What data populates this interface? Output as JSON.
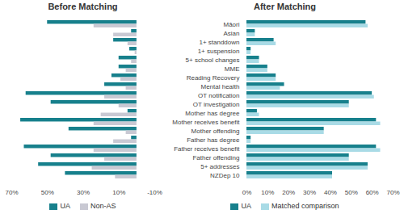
{
  "chart_data": [
    {
      "type": "bar",
      "title": "Before Matching",
      "orientation": "horizontal",
      "legend": "bottom",
      "tick_labels": "x",
      "categories": [
        "Māori",
        "Asian",
        "1+ standdown",
        "1+ suspension",
        "5+ school changes",
        "MME",
        "Reading Recovery",
        "Mental health",
        "OT notification",
        "OT investigation",
        "Mother has degree",
        "Mother receives benefit",
        "Mother offending",
        "Father has degree",
        "Father receives benefit",
        "Father offending",
        "5+ addresses",
        "NZDep 10"
      ],
      "series": [
        {
          "name": "UA",
          "color": "#17808c",
          "values": [
            50,
            3,
            13,
            4,
            10,
            10,
            14,
            18,
            62,
            48,
            5,
            65,
            38,
            3,
            63,
            48,
            55,
            40
          ]
        },
        {
          "name": "Non-AS",
          "color": "#c9c9d3",
          "values": [
            24,
            13,
            5,
            1,
            3,
            6,
            9,
            6,
            18,
            10,
            20,
            24,
            6,
            13,
            24,
            18,
            25,
            12
          ]
        }
      ],
      "xlim": [
        70,
        -10
      ],
      "xticks": [
        {
          "value": 70,
          "label": "70%"
        },
        {
          "value": 50,
          "label": "50%"
        },
        {
          "value": 30,
          "label": "30%"
        },
        {
          "value": 10,
          "label": "10%"
        },
        {
          "value": -10,
          "label": "-10%"
        }
      ]
    },
    {
      "type": "bar",
      "title": "After Matching",
      "orientation": "horizontal",
      "legend": "bottom",
      "tick_labels": true,
      "categories": [
        "Māori",
        "Asian",
        "1+ standdown",
        "1+ suspension",
        "5+ school changes",
        "MME",
        "Reading Recovery",
        "Mental health",
        "OT notification",
        "OT investigation",
        "Mother has degree",
        "Mother receives benefit",
        "Mother offending",
        "Father has degree",
        "Father receives benefit",
        "Father offending",
        "5+ addresses",
        "NZDep 10"
      ],
      "series": [
        {
          "name": "UA",
          "color": "#17808c",
          "values": [
            57,
            4,
            13,
            2,
            6,
            10,
            14,
            18,
            60,
            49,
            5,
            62,
            37,
            2,
            62,
            49,
            58,
            41
          ]
        },
        {
          "name": "Matched comparison",
          "color": "#a9dbe6",
          "values": [
            58,
            4,
            14,
            2,
            6,
            10,
            14,
            16,
            61,
            49,
            6,
            64,
            37,
            2,
            64,
            49,
            58,
            41
          ]
        }
      ],
      "xlim": [
        0,
        70
      ],
      "xticks": [
        {
          "value": 0,
          "label": "0%"
        },
        {
          "value": 10,
          "label": "10%"
        },
        {
          "value": 20,
          "label": "20%"
        },
        {
          "value": 30,
          "label": "30%"
        },
        {
          "value": 40,
          "label": "40%"
        },
        {
          "value": 50,
          "label": "50%"
        },
        {
          "value": 60,
          "label": "60%"
        },
        {
          "value": 70,
          "label": "70%"
        }
      ]
    }
  ]
}
